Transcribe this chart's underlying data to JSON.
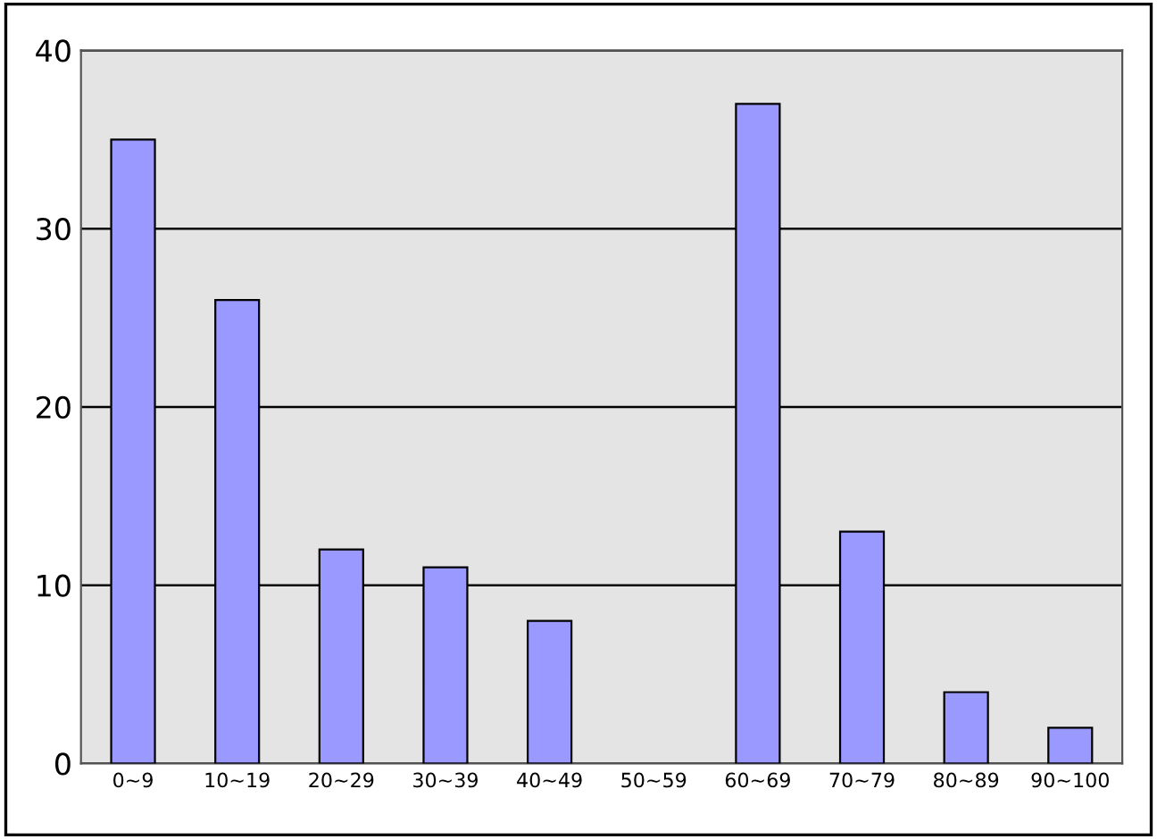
{
  "chart_data": {
    "type": "bar",
    "categories": [
      "0~9",
      "10~19",
      "20~29",
      "30~39",
      "40~49",
      "50~59",
      "60~69",
      "70~79",
      "80~89",
      "90~100"
    ],
    "values": [
      35,
      26,
      12,
      11,
      8,
      0,
      37,
      13,
      4,
      2
    ],
    "color": "#9999ff",
    "ylim": [
      0,
      40
    ],
    "yticks": [
      0,
      10,
      20,
      30,
      40
    ],
    "grid": "y",
    "legend": false
  }
}
